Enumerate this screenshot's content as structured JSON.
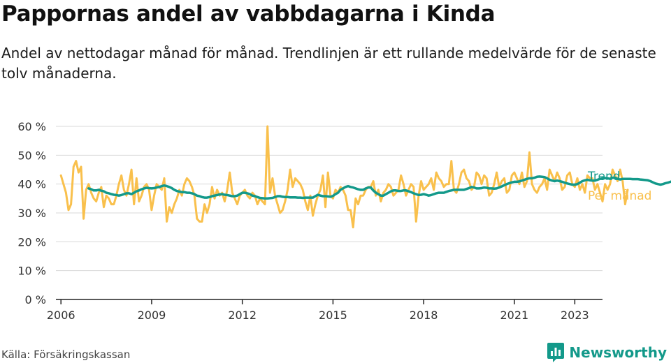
{
  "header": {
    "title": "Pappornas andel av vabbdagarna i Kinda",
    "subtitle": "Andel av nettodagar månad för månad. Trendlinjen är ett rullande medelvärde för de senaste tolv månaderna."
  },
  "footer": {
    "source": "Källa: Försäkringskassan",
    "brand": "Newsworthy",
    "brand_icon": "bar-chart-logo-icon"
  },
  "colors": {
    "trend": "#13998a",
    "monthly": "#f9c04c",
    "grid": "#d9d9d9",
    "axis": "#222222",
    "brand": "#13998a"
  },
  "chart_data": {
    "type": "line",
    "x_axis": {
      "type": "time",
      "range": [
        "2005-11",
        "2023-12"
      ],
      "ticks": [
        "2006",
        "2009",
        "2012",
        "2015",
        "2018",
        "2021",
        "2023"
      ],
      "tick_years": [
        2006,
        2009,
        2012,
        2015,
        2018,
        2021,
        2023
      ]
    },
    "y_axis": {
      "range": [
        0,
        60
      ],
      "ticks": [
        0,
        10,
        20,
        30,
        40,
        50,
        60
      ],
      "tick_labels": [
        "0 %",
        "10 %",
        "20 %",
        "30 %",
        "40 %",
        "50 %",
        "60 %"
      ],
      "unit": "%"
    },
    "grid": true,
    "legend": "right-end labels",
    "series": [
      {
        "name": "Per månad",
        "start": "2006-01",
        "values": [
          43,
          40,
          37,
          31,
          33,
          46,
          48,
          44,
          46,
          28,
          38,
          40,
          37,
          35,
          34,
          37,
          39,
          32,
          36,
          35,
          33,
          33,
          36,
          40,
          43,
          38,
          36,
          40,
          45,
          33,
          42,
          34,
          36,
          39,
          40,
          38,
          31,
          36,
          40,
          39,
          38,
          42,
          27,
          32,
          30,
          33,
          35,
          38,
          36,
          40,
          42,
          41,
          39,
          36,
          28,
          27,
          27,
          33,
          30,
          33,
          39,
          35,
          38,
          36,
          37,
          34,
          38,
          44,
          37,
          35,
          33,
          36,
          37,
          38,
          36,
          35,
          37,
          36,
          33,
          35,
          34,
          33,
          60,
          37,
          42,
          36,
          33,
          30,
          31,
          34,
          38,
          45,
          39,
          42,
          41,
          40,
          38,
          34,
          31,
          36,
          29,
          33,
          36,
          38,
          43,
          32,
          44,
          36,
          35,
          38,
          37,
          39,
          38,
          36,
          31,
          31,
          25,
          35,
          33,
          36,
          36,
          38,
          39,
          39,
          41,
          36,
          38,
          34,
          37,
          38,
          40,
          39,
          36,
          37,
          38,
          43,
          40,
          36,
          38,
          40,
          39,
          27,
          36,
          41,
          38,
          39,
          40,
          42,
          38,
          44,
          42,
          41,
          39,
          40,
          40,
          48,
          38,
          37,
          40,
          44,
          45,
          42,
          41,
          38,
          39,
          44,
          43,
          40,
          43,
          42,
          36,
          37,
          40,
          44,
          39,
          41,
          42,
          37,
          38,
          43,
          44,
          42,
          40,
          44,
          39,
          41,
          51,
          40,
          38,
          37,
          39,
          40,
          42,
          38,
          45,
          43,
          41,
          44,
          42,
          38,
          39,
          43,
          44,
          40,
          39,
          42,
          38,
          40,
          37,
          43,
          42,
          42,
          38,
          40,
          37,
          34,
          40,
          38,
          40,
          45,
          43,
          41,
          45,
          41,
          33,
          38
        ]
      },
      {
        "name": "Trend",
        "start": "2006-12",
        "values": [
          38.5,
          38.2,
          37.8,
          37.8,
          38.0,
          37.7,
          37.5,
          37.0,
          36.8,
          36.5,
          36.3,
          36.2,
          36.0,
          36.2,
          36.5,
          36.8,
          36.8,
          36.5,
          37.0,
          37.5,
          37.8,
          38.2,
          38.5,
          38.7,
          38.6,
          38.5,
          38.6,
          38.8,
          39.0,
          39.3,
          39.5,
          39.3,
          39.0,
          38.6,
          38.0,
          37.6,
          37.4,
          37.2,
          37.2,
          37.0,
          37.0,
          36.8,
          36.5,
          36.0,
          35.8,
          35.5,
          35.3,
          35.3,
          35.5,
          35.8,
          36.0,
          36.2,
          36.4,
          36.5,
          36.3,
          36.2,
          36.0,
          35.8,
          35.8,
          36.0,
          36.5,
          37.0,
          37.0,
          36.8,
          36.5,
          36.0,
          35.8,
          35.5,
          35.2,
          35.1,
          35.0,
          35.0,
          35.1,
          35.2,
          35.5,
          35.8,
          35.8,
          35.6,
          35.5,
          35.5,
          35.4,
          35.4,
          35.4,
          35.3,
          35.3,
          35.2,
          35.3,
          35.3,
          35.3,
          35.3,
          35.8,
          36.3,
          36.0,
          35.8,
          35.8,
          35.7,
          35.6,
          35.9,
          36.5,
          37.0,
          38.0,
          38.5,
          39.0,
          39.3,
          39.0,
          38.8,
          38.5,
          38.2,
          38.0,
          38.0,
          38.5,
          38.8,
          38.8,
          37.8,
          37.0,
          36.5,
          36.0,
          36.0,
          36.5,
          37.0,
          37.5,
          37.8,
          37.8,
          37.6,
          37.6,
          37.8,
          37.8,
          37.5,
          37.2,
          36.8,
          36.5,
          36.2,
          36.3,
          36.5,
          36.3,
          36.0,
          36.2,
          36.5,
          36.8,
          37.0,
          37.0,
          37.0,
          37.3,
          37.6,
          37.8,
          38.0,
          38.0,
          38.0,
          38.0,
          38.0,
          38.3,
          38.6,
          39.0,
          38.8,
          38.5,
          38.5,
          38.6,
          38.8,
          38.7,
          38.5,
          38.5,
          38.4,
          38.5,
          38.8,
          39.2,
          39.6,
          40.0,
          40.3,
          40.6,
          40.8,
          40.8,
          40.9,
          41.2,
          41.5,
          41.8,
          42.0,
          42.0,
          42.2,
          42.5,
          42.6,
          42.5,
          42.4,
          42.0,
          41.5,
          41.2,
          41.0,
          41.2,
          41.0,
          40.8,
          40.5,
          40.2,
          40.0,
          39.8,
          39.8,
          40.0,
          40.5,
          41.0,
          41.3,
          41.5,
          41.3,
          41.2,
          41.2,
          41.5,
          41.8,
          42.0,
          42.1,
          42.0,
          41.8,
          42.2,
          42.2,
          41.8,
          41.6,
          41.8,
          41.8,
          41.8,
          41.8,
          41.7,
          41.7,
          41.7,
          41.6,
          41.5,
          41.4,
          41.3,
          41.0,
          40.6,
          40.2,
          40.0,
          39.8,
          40.0,
          40.3,
          40.5,
          40.8,
          41.0,
          41.0,
          40.5,
          40.0,
          40.0
        ]
      }
    ]
  }
}
